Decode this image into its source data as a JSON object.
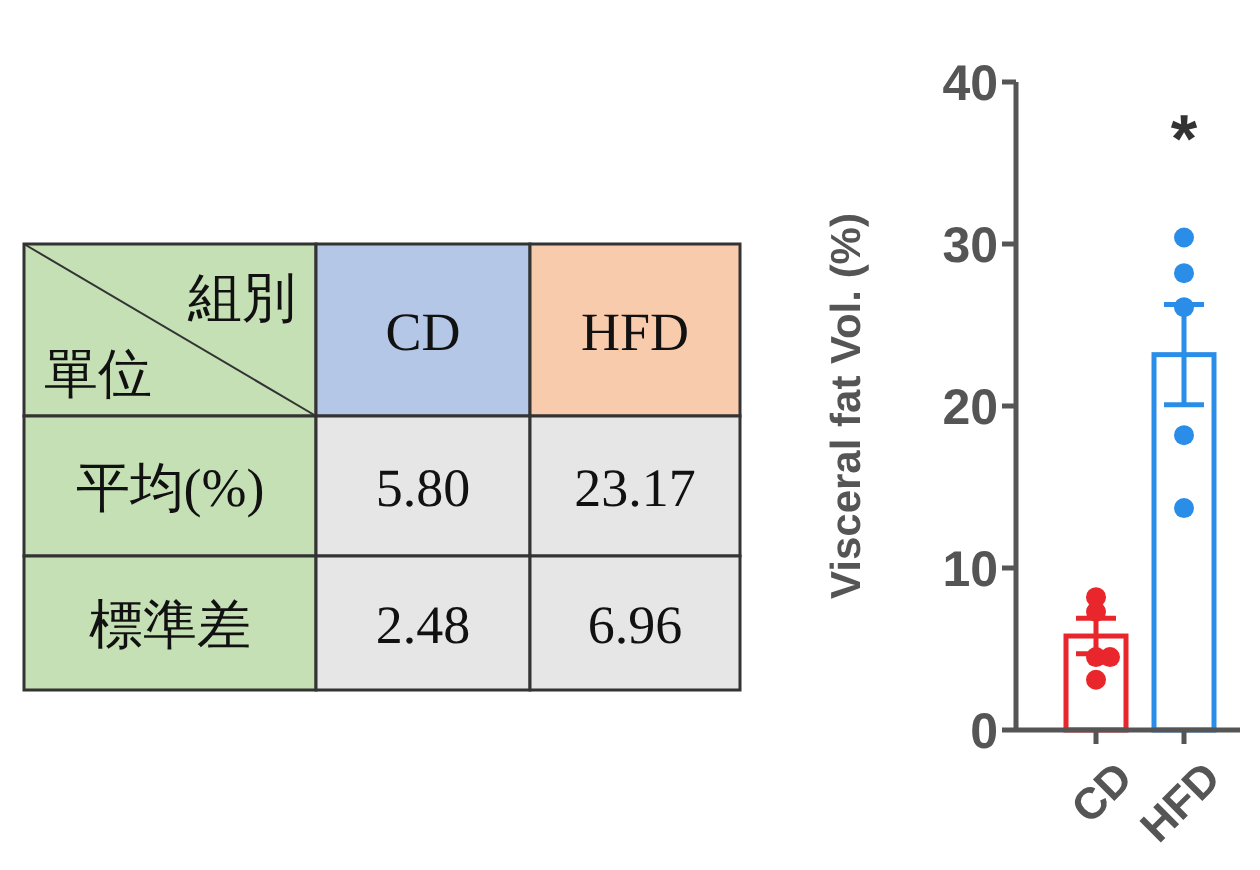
{
  "chart_data": [
    {
      "type": "other",
      "annotations": [
        "組別",
        "單位",
        "CD",
        "HFD",
        "平均(%)",
        "5.80",
        "23.17",
        "標準差",
        "2.48",
        "6.96"
      ]
    },
    {
      "type": "bar",
      "ylabel": "Visceral fat Vol. (%)",
      "categories": [
        "CD",
        "HFD"
      ],
      "ylim": [
        0,
        40
      ],
      "yticks": [
        0,
        10,
        20,
        30,
        40
      ],
      "marker": "circle",
      "series": [
        {
          "type": "bar",
          "colors": [
            "#e8262b",
            "#2a8ee8"
          ],
          "values": [
            5.8,
            23.17
          ],
          "errors": [
            1.1,
            3.1
          ]
        },
        {
          "type": "scatter",
          "x": [
            "CD",
            "CD",
            "CD",
            "CD",
            "CD",
            "HFD",
            "HFD",
            "HFD",
            "HFD",
            "HFD"
          ],
          "values": [
            8.2,
            7.3,
            4.5,
            4.5,
            3.1,
            30.4,
            28.2,
            26.1,
            18.2,
            13.7
          ],
          "colors": [
            "#e8262b",
            "#e8262b",
            "#e8262b",
            "#e8262b",
            "#e8262b",
            "#2a8ee8",
            "#2a8ee8",
            "#2a8ee8",
            "#2a8ee8",
            "#2a8ee8"
          ]
        }
      ],
      "annotations": [
        "*"
      ]
    }
  ]
}
